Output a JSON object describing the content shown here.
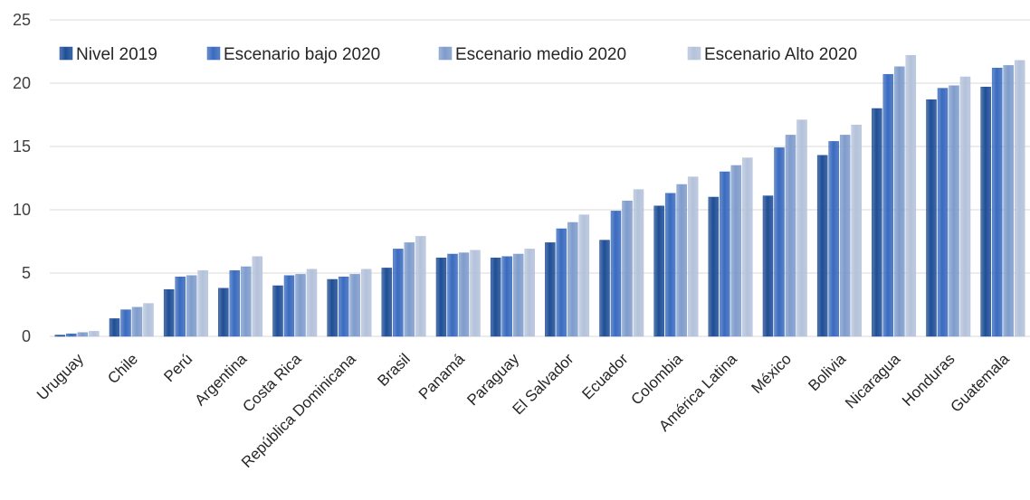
{
  "chart_data": {
    "type": "bar",
    "categories": [
      "Uruguay",
      "Chile",
      "Perú",
      "Argentina",
      "Costa Rica",
      "República Dominicana",
      "Brasil",
      "Panamá",
      "Paraguay",
      "El Salvador",
      "Ecuador",
      "Colombia",
      "América Latina",
      "México",
      "Bolivia",
      "Nicaragua",
      "Honduras",
      "Guatemala"
    ],
    "series": [
      {
        "name": "Nivel 2019",
        "color": "#1f4e96",
        "values": [
          0.1,
          1.4,
          3.7,
          3.8,
          4.0,
          4.5,
          5.4,
          6.2,
          6.2,
          7.4,
          7.6,
          10.3,
          11.0,
          11.1,
          14.3,
          18.0,
          18.7,
          19.7
        ]
      },
      {
        "name": "Escenario bajo 2020",
        "color": "#3a6bbf",
        "values": [
          0.2,
          2.1,
          4.7,
          5.2,
          4.8,
          4.7,
          6.9,
          6.5,
          6.3,
          8.5,
          9.9,
          11.3,
          13.0,
          14.9,
          15.4,
          20.7,
          19.6,
          21.2
        ]
      },
      {
        "name": "Escenario medio 2020",
        "color": "#7f9ccc",
        "values": [
          0.3,
          2.3,
          4.8,
          5.5,
          4.9,
          4.9,
          7.4,
          6.6,
          6.5,
          9.0,
          10.7,
          12.0,
          13.5,
          15.9,
          15.9,
          21.3,
          19.8,
          21.4
        ]
      },
      {
        "name": "Escenario Alto 2020",
        "color": "#b4c2da",
        "values": [
          0.4,
          2.6,
          5.2,
          6.3,
          5.3,
          5.3,
          7.9,
          6.8,
          6.9,
          9.6,
          11.6,
          12.6,
          14.1,
          17.1,
          16.7,
          22.2,
          20.5,
          21.8
        ]
      }
    ],
    "y_ticks": [
      "0",
      "5",
      "10",
      "15",
      "20",
      "25"
    ],
    "ylim": [
      0,
      25
    ],
    "grid": true,
    "legend_position": "top-left"
  }
}
